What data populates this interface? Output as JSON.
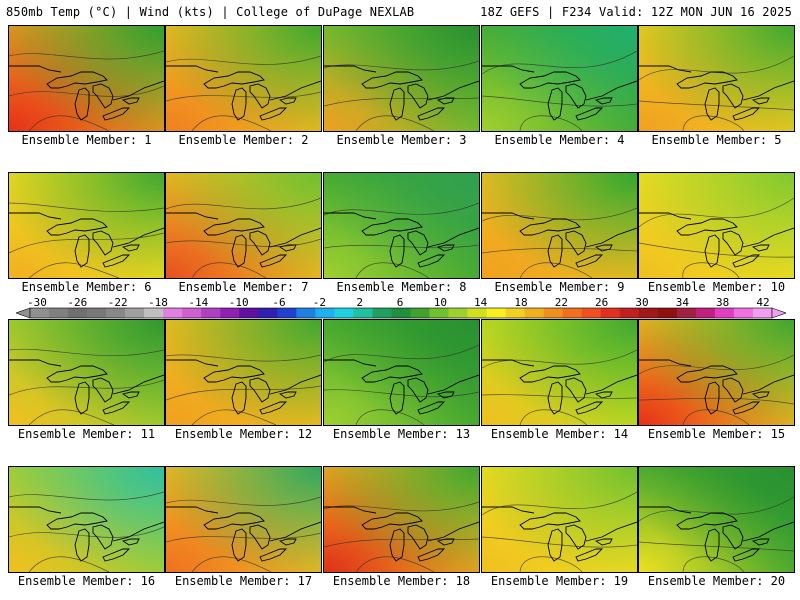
{
  "header": {
    "left": "850mb Temp (°C) | Wind (kts) | College of DuPage NEXLAB",
    "right": "18Z GEFS | F234 Valid: 12Z MON JUN 16 2025"
  },
  "panels": [
    {
      "label": "Ensemble Member: 1",
      "bg": "#e8a020",
      "sw": "#e83018",
      "ne": "#30a030"
    },
    {
      "label": "Ensemble Member: 2",
      "bg": "#f0c020",
      "sw": "#f08020",
      "ne": "#40a830"
    },
    {
      "label": "Ensemble Member: 3",
      "bg": "#70c030",
      "sw": "#f0a020",
      "ne": "#289030"
    },
    {
      "label": "Ensemble Member: 4",
      "bg": "#40a830",
      "sw": "#a0d030",
      "ne": "#20b070"
    },
    {
      "label": "Ensemble Member: 5",
      "bg": "#f0d020",
      "sw": "#f0a020",
      "ne": "#40a830"
    },
    {
      "label": "Ensemble Member: 6",
      "bg": "#f0e020",
      "sw": "#f0b020",
      "ne": "#40a830"
    },
    {
      "label": "Ensemble Member: 7",
      "bg": "#f0c020",
      "sw": "#e85020",
      "ne": "#70c030"
    },
    {
      "label": "Ensemble Member: 8",
      "bg": "#40a830",
      "sw": "#a0d030",
      "ne": "#30a050"
    },
    {
      "label": "Ensemble Member: 9",
      "bg": "#f0c020",
      "sw": "#f0a020",
      "ne": "#30a830"
    },
    {
      "label": "Ensemble Member: 10",
      "bg": "#f0e020",
      "sw": "#f0c020",
      "ne": "#80c830"
    },
    {
      "label": "Ensemble Member: 11",
      "bg": "#a0d030",
      "sw": "#f0c020",
      "ne": "#309830"
    },
    {
      "label": "Ensemble Member: 12",
      "bg": "#f0c020",
      "sw": "#f0a020",
      "ne": "#40a830"
    },
    {
      "label": "Ensemble Member: 13",
      "bg": "#40a830",
      "sw": "#a0d030",
      "ne": "#289030"
    },
    {
      "label": "Ensemble Member: 14",
      "bg": "#c0e020",
      "sw": "#f0c020",
      "ne": "#40a830"
    },
    {
      "label": "Ensemble Member: 15",
      "bg": "#f0c020",
      "sw": "#e83018",
      "ne": "#40a830"
    },
    {
      "label": "Ensemble Member: 16",
      "bg": "#a0d030",
      "sw": "#f0c020",
      "ne": "#30c0a0"
    },
    {
      "label": "Ensemble Member: 17",
      "bg": "#f0c020",
      "sw": "#f07020",
      "ne": "#30a860"
    },
    {
      "label": "Ensemble Member: 18",
      "bg": "#f0b020",
      "sw": "#e03018",
      "ne": "#40a830"
    },
    {
      "label": "Ensemble Member: 19",
      "bg": "#f0e020",
      "sw": "#f0c020",
      "ne": "#70c030"
    },
    {
      "label": "Ensemble Member: 20",
      "bg": "#40a830",
      "sw": "#f0e020",
      "ne": "#289030"
    }
  ],
  "colorbar": {
    "ticks": [
      "-30",
      "-26",
      "-22",
      "-18",
      "-14",
      "-10",
      "-6",
      "-2",
      "2",
      "6",
      "10",
      "14",
      "18",
      "22",
      "26",
      "30",
      "34",
      "38",
      "42"
    ],
    "colors": [
      "#909090",
      "#808080",
      "#707070",
      "#787878",
      "#888888",
      "#a0a0a0",
      "#c0c0c0",
      "#e080e0",
      "#d060d0",
      "#b040c0",
      "#9020b0",
      "#6010a0",
      "#3020b0",
      "#2040d0",
      "#2080e0",
      "#20b0f0",
      "#20d0e0",
      "#20c0a0",
      "#20a060",
      "#209040",
      "#40a030",
      "#70c030",
      "#a0d030",
      "#d0e020",
      "#f8f020",
      "#f0d020",
      "#f0b020",
      "#f09020",
      "#f07020",
      "#f05020",
      "#e03020",
      "#c02020",
      "#a01818",
      "#901010",
      "#a02040",
      "#c02080",
      "#e040c0",
      "#f070e0",
      "#f0a0f0"
    ]
  }
}
